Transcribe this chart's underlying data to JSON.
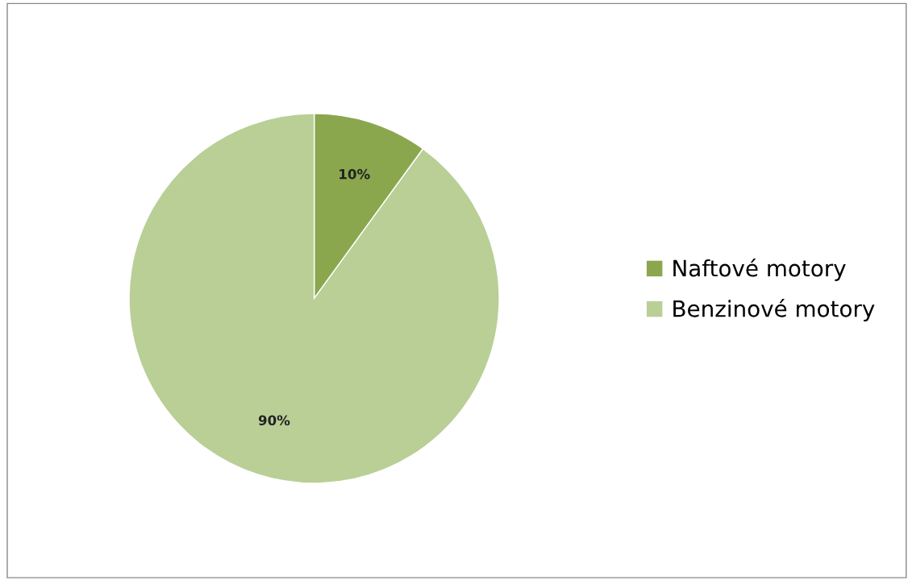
{
  "chart_data": {
    "type": "pie",
    "categories": [
      "Naftové motory",
      "Benzinové motory"
    ],
    "values": [
      10,
      90
    ],
    "colors": [
      "#8aa74e",
      "#b9cf96"
    ],
    "value_labels": [
      "10%",
      "90%"
    ],
    "legend": "right"
  }
}
